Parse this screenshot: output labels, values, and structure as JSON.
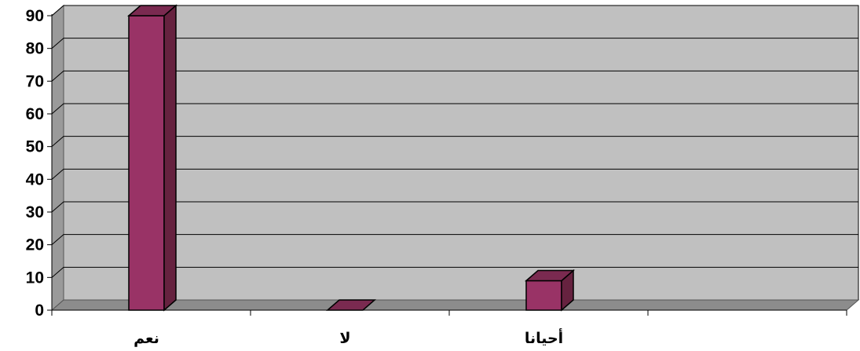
{
  "chart_data": {
    "type": "bar",
    "style": "3d-column",
    "categories": [
      "نعم",
      "لا",
      "أحيانا",
      ""
    ],
    "values": [
      90,
      0,
      9,
      null
    ],
    "ylim": [
      0,
      90
    ],
    "y_ticks": [
      "0",
      "10",
      "20",
      "30",
      "40",
      "50",
      "60",
      "70",
      "80",
      "90"
    ],
    "grid": true,
    "legend": "none",
    "title": "",
    "xlabel": "",
    "ylabel": "",
    "colors": {
      "bar_front": "#993366",
      "bar_side": "#66223f",
      "bar_top": "#7a2a50",
      "bar_outline": "#000000",
      "wall": "#c0c0c0",
      "side_wall": "#9a9a9a",
      "floor": "#8c8c8c",
      "gridline": "#000000"
    }
  }
}
